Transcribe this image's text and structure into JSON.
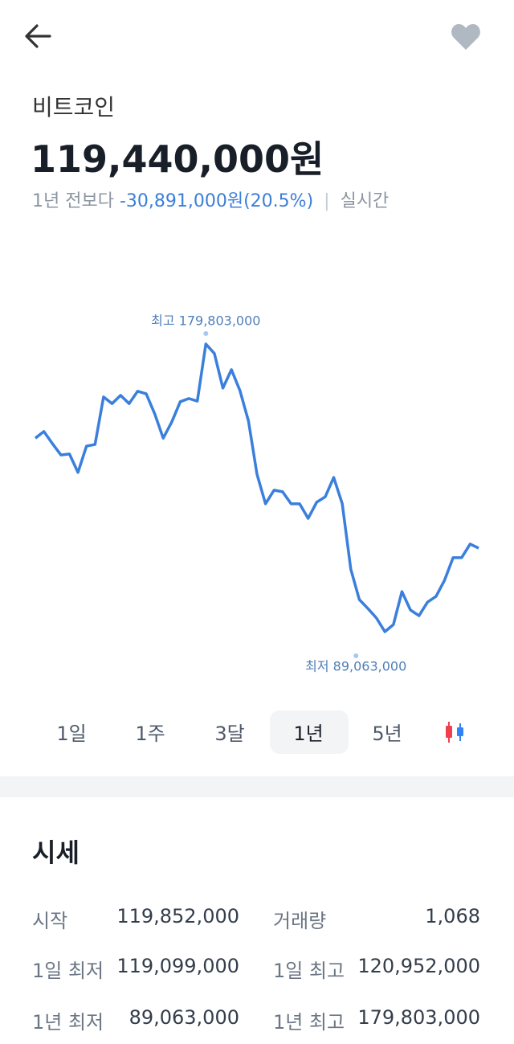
{
  "header": {
    "title": "비트코인",
    "price": "119,440,000원",
    "change_prefix": "1년 전보다",
    "change": "-30,891,000원(20.5%)",
    "separator": "|",
    "realtime": "실시간"
  },
  "chart_data": {
    "type": "line",
    "color": "#3a7fdc",
    "values": [
      150100000,
      152200000,
      148400000,
      144800000,
      145100000,
      139300000,
      147600000,
      148100000,
      163100000,
      161000000,
      163600000,
      161000000,
      164900000,
      164100000,
      157800000,
      150100000,
      155200000,
      161600000,
      162600000,
      161800000,
      179803000,
      176800000,
      165900000,
      171700000,
      165100000,
      155500000,
      138700000,
      129400000,
      133700000,
      133200000,
      129400000,
      129400000,
      124800000,
      129900000,
      131600000,
      137700000,
      129400000,
      108800000,
      99200000,
      96400000,
      93400000,
      89063000,
      91300000,
      101700000,
      95900000,
      94100000,
      98400000,
      100200000,
      105300000,
      112400000,
      112400000,
      116700000,
      115400000
    ],
    "ylim": [
      70300000,
      212250000
    ],
    "high_label": "최고 179,803,000",
    "low_label": "최저 89,063,000"
  },
  "tabs": [
    "1일",
    "1주",
    "3달",
    "1년",
    "5년"
  ],
  "selected_tab": 3,
  "stats": {
    "title": "시세",
    "rows": [
      [
        "시작",
        "119,852,000",
        "거래량",
        "1,068"
      ],
      [
        "1일 최저",
        "119,099,000",
        "1일 최고",
        "120,952,000"
      ],
      [
        "1년 최저",
        "89,063,000",
        "1년 최고",
        "179,803,000"
      ]
    ]
  }
}
